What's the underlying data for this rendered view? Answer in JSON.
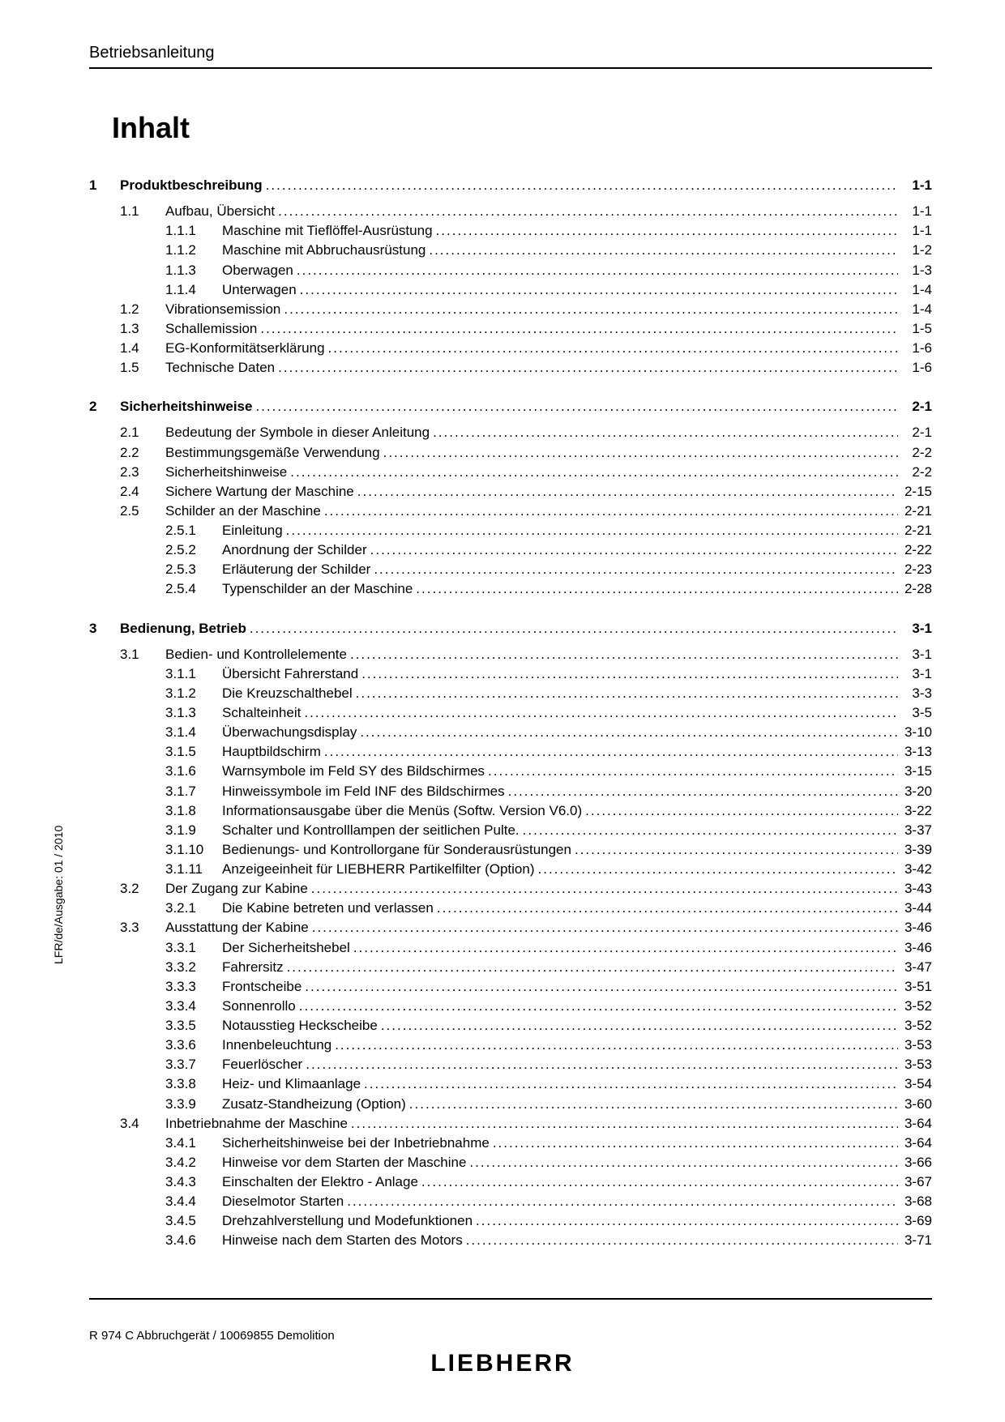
{
  "header": "Betriebsanleitung",
  "title": "Inhalt",
  "side_text": "LFR/de/Ausgabe: 01 / 2010",
  "footer_left": "R 974 C Abbruchgerät / 10069855 Demolition",
  "footer_logo": "LIEBHERR",
  "toc": [
    {
      "type": "chapter",
      "num": "1",
      "label": "Produktbeschreibung",
      "page": "1-1"
    },
    {
      "type": "gap"
    },
    {
      "type": "section",
      "num": "1.1",
      "label": "Aufbau, Übersicht",
      "page": "1-1"
    },
    {
      "type": "sub",
      "num": "1.1.1",
      "label": "Maschine mit Tieflöffel-Ausrüstung",
      "page": "1-1"
    },
    {
      "type": "sub",
      "num": "1.1.2",
      "label": "Maschine mit Abbruchausrüstung",
      "page": "1-2"
    },
    {
      "type": "sub",
      "num": "1.1.3",
      "label": "Oberwagen",
      "page": "1-3"
    },
    {
      "type": "sub",
      "num": "1.1.4",
      "label": "Unterwagen",
      "page": "1-4"
    },
    {
      "type": "section",
      "num": "1.2",
      "label": "Vibrationsemission",
      "page": "1-4"
    },
    {
      "type": "section",
      "num": "1.3",
      "label": "Schallemission",
      "page": "1-5"
    },
    {
      "type": "section",
      "num": "1.4",
      "label": "EG-Konformitätserklärung",
      "page": "1-6"
    },
    {
      "type": "section",
      "num": "1.5",
      "label": "Technische Daten",
      "page": "1-6"
    },
    {
      "type": "chapter-gap"
    },
    {
      "type": "chapter",
      "num": "2",
      "label": "Sicherheitshinweise",
      "page": "2-1"
    },
    {
      "type": "gap"
    },
    {
      "type": "section",
      "num": "2.1",
      "label": "Bedeutung der Symbole in dieser Anleitung",
      "page": "2-1"
    },
    {
      "type": "section",
      "num": "2.2",
      "label": "Bestimmungsgemäße Verwendung",
      "page": "2-2"
    },
    {
      "type": "section",
      "num": "2.3",
      "label": "Sicherheitshinweise",
      "page": "2-2"
    },
    {
      "type": "section",
      "num": "2.4",
      "label": "Sichere Wartung der Maschine",
      "page": "2-15"
    },
    {
      "type": "section",
      "num": "2.5",
      "label": "Schilder an der Maschine",
      "page": "2-21"
    },
    {
      "type": "sub",
      "num": "2.5.1",
      "label": "Einleitung",
      "page": "2-21"
    },
    {
      "type": "sub",
      "num": "2.5.2",
      "label": "Anordnung der Schilder",
      "page": "2-22"
    },
    {
      "type": "sub",
      "num": "2.5.3",
      "label": "Erläuterung der Schilder",
      "page": "2-23"
    },
    {
      "type": "sub",
      "num": "2.5.4",
      "label": "Typenschilder an der Maschine",
      "page": "2-28"
    },
    {
      "type": "chapter-gap"
    },
    {
      "type": "chapter",
      "num": "3",
      "label": "Bedienung, Betrieb",
      "page": "3-1"
    },
    {
      "type": "gap"
    },
    {
      "type": "section",
      "num": "3.1",
      "label": "Bedien- und Kontrollelemente",
      "page": "3-1"
    },
    {
      "type": "sub",
      "num": "3.1.1",
      "label": "Übersicht Fahrerstand",
      "page": "3-1"
    },
    {
      "type": "sub",
      "num": "3.1.2",
      "label": "Die Kreuzschalthebel",
      "page": "3-3"
    },
    {
      "type": "sub",
      "num": "3.1.3",
      "label": "Schalteinheit",
      "page": "3-5"
    },
    {
      "type": "sub",
      "num": "3.1.4",
      "label": "Überwachungsdisplay",
      "page": "3-10"
    },
    {
      "type": "sub",
      "num": "3.1.5",
      "label": "Hauptbildschirm",
      "page": "3-13"
    },
    {
      "type": "sub",
      "num": "3.1.6",
      "label": "Warnsymbole im Feld SY des Bildschirmes",
      "page": "3-15"
    },
    {
      "type": "sub",
      "num": "3.1.7",
      "label": "Hinweissymbole im Feld INF des Bildschirmes",
      "page": "3-20"
    },
    {
      "type": "sub",
      "num": "3.1.8",
      "label": "Informationsausgabe über die Menüs (Softw. Version V6.0)",
      "page": "3-22"
    },
    {
      "type": "sub",
      "num": "3.1.9",
      "label": "Schalter und Kontrolllampen der seitlichen Pulte.",
      "page": "3-37"
    },
    {
      "type": "sub",
      "num": "3.1.10",
      "label": "Bedienungs- und Kontrollorgane für Sonderausrüstungen",
      "page": "3-39"
    },
    {
      "type": "sub",
      "num": "3.1.11",
      "label": "Anzeigeeinheit für LIEBHERR Partikelfilter (Option)",
      "page": "3-42"
    },
    {
      "type": "section",
      "num": "3.2",
      "label": "Der Zugang zur Kabine",
      "page": "3-43"
    },
    {
      "type": "sub",
      "num": "3.2.1",
      "label": "Die Kabine betreten und verlassen",
      "page": "3-44"
    },
    {
      "type": "section",
      "num": "3.3",
      "label": "Ausstattung der Kabine",
      "page": "3-46"
    },
    {
      "type": "sub",
      "num": "3.3.1",
      "label": "Der Sicherheitshebel",
      "page": "3-46"
    },
    {
      "type": "sub",
      "num": "3.3.2",
      "label": "Fahrersitz",
      "page": "3-47"
    },
    {
      "type": "sub",
      "num": "3.3.3",
      "label": "Frontscheibe",
      "page": "3-51"
    },
    {
      "type": "sub",
      "num": "3.3.4",
      "label": "Sonnenrollo",
      "page": "3-52"
    },
    {
      "type": "sub",
      "num": "3.3.5",
      "label": "Notausstieg Heckscheibe",
      "page": "3-52"
    },
    {
      "type": "sub",
      "num": "3.3.6",
      "label": "Innenbeleuchtung",
      "page": "3-53"
    },
    {
      "type": "sub",
      "num": "3.3.7",
      "label": "Feuerlöscher",
      "page": "3-53"
    },
    {
      "type": "sub",
      "num": "3.3.8",
      "label": "Heiz- und Klimaanlage",
      "page": "3-54"
    },
    {
      "type": "sub",
      "num": "3.3.9",
      "label": "Zusatz-Standheizung (Option)",
      "page": "3-60"
    },
    {
      "type": "section",
      "num": "3.4",
      "label": "Inbetriebnahme der Maschine",
      "page": "3-64"
    },
    {
      "type": "sub",
      "num": "3.4.1",
      "label": "Sicherheitshinweise bei der Inbetriebnahme",
      "page": "3-64"
    },
    {
      "type": "sub",
      "num": "3.4.2",
      "label": "Hinweise vor dem Starten der Maschine",
      "page": "3-66"
    },
    {
      "type": "sub",
      "num": "3.4.3",
      "label": "Einschalten der Elektro - Anlage",
      "page": "3-67"
    },
    {
      "type": "sub",
      "num": "3.4.4",
      "label": "Dieselmotor Starten",
      "page": "3-68"
    },
    {
      "type": "sub",
      "num": "3.4.5",
      "label": "Drehzahlverstellung und Modefunktionen",
      "page": "3-69"
    },
    {
      "type": "sub",
      "num": "3.4.6",
      "label": "Hinweise nach dem Starten des Motors",
      "page": "3-71"
    }
  ]
}
